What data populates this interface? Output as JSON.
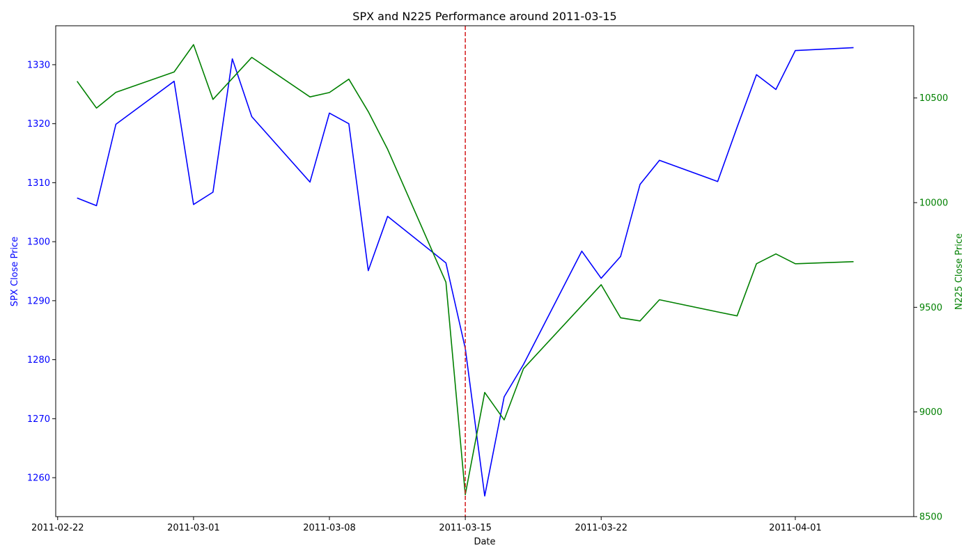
{
  "chart_data": {
    "type": "line",
    "title": "SPX and N225 Performance around 2011-03-15",
    "xlabel": "Date",
    "ylabel_left": "SPX Close Price",
    "ylabel_right": "N225 Close Price",
    "x_ticks": [
      "2011-02-22",
      "2011-03-01",
      "2011-03-08",
      "2011-03-15",
      "2011-03-22",
      "2011-04-01"
    ],
    "ylim_left": [
      1253.4,
      1336.6
    ],
    "ylim_right": [
      8500,
      10845
    ],
    "yticks_left": [
      "1260",
      "1270",
      "1280",
      "1290",
      "1300",
      "1310",
      "1320",
      "1330"
    ],
    "yticks_right": [
      "8500",
      "9000",
      "9500",
      "10000",
      "10500"
    ],
    "event_date": "2011-03-15",
    "event_color": "#d62728",
    "grid": false,
    "series": [
      {
        "axis": "left",
        "color": "#0000ff",
        "points": [
          [
            "2011-02-23",
            1307.4
          ],
          [
            "2011-02-24",
            1306.1
          ],
          [
            "2011-02-25",
            1319.9
          ],
          [
            "2011-02-28",
            1327.2
          ],
          [
            "2011-03-01",
            1306.3
          ],
          [
            "2011-03-02",
            1308.4
          ],
          [
            "2011-03-03",
            1331.0
          ],
          [
            "2011-03-04",
            1321.2
          ],
          [
            "2011-03-07",
            1310.1
          ],
          [
            "2011-03-08",
            1321.8
          ],
          [
            "2011-03-09",
            1320.0
          ],
          [
            "2011-03-10",
            1295.1
          ],
          [
            "2011-03-11",
            1304.3
          ],
          [
            "2011-03-14",
            1296.4
          ],
          [
            "2011-03-15",
            1281.9
          ],
          [
            "2011-03-16",
            1256.9
          ],
          [
            "2011-03-17",
            1273.7
          ],
          [
            "2011-03-18",
            1279.2
          ],
          [
            "2011-03-21",
            1298.4
          ],
          [
            "2011-03-22",
            1293.8
          ],
          [
            "2011-03-23",
            1297.5
          ],
          [
            "2011-03-24",
            1309.7
          ],
          [
            "2011-03-25",
            1313.8
          ],
          [
            "2011-03-28",
            1310.2
          ],
          [
            "2011-03-29",
            1319.4
          ],
          [
            "2011-03-30",
            1328.3
          ],
          [
            "2011-03-31",
            1325.8
          ],
          [
            "2011-04-01",
            1332.4
          ],
          [
            "2011-04-04",
            1332.9
          ]
        ]
      },
      {
        "axis": "right",
        "color": "#008000",
        "points": [
          [
            "2011-02-23",
            10580
          ],
          [
            "2011-02-24",
            10452
          ],
          [
            "2011-02-25",
            10527
          ],
          [
            "2011-02-28",
            10624
          ],
          [
            "2011-03-01",
            10755
          ],
          [
            "2011-03-02",
            10493
          ],
          [
            "2011-03-04",
            10694
          ],
          [
            "2011-03-07",
            10505
          ],
          [
            "2011-03-08",
            10526
          ],
          [
            "2011-03-09",
            10590
          ],
          [
            "2011-03-10",
            10435
          ],
          [
            "2011-03-11",
            10255
          ],
          [
            "2011-03-14",
            9620
          ],
          [
            "2011-03-15",
            8605
          ],
          [
            "2011-03-16",
            9093
          ],
          [
            "2011-03-17",
            8962
          ],
          [
            "2011-03-18",
            9207
          ],
          [
            "2011-03-22",
            9608
          ],
          [
            "2011-03-23",
            9450
          ],
          [
            "2011-03-24",
            9435
          ],
          [
            "2011-03-25",
            9536
          ],
          [
            "2011-03-28",
            9478
          ],
          [
            "2011-03-29",
            9459
          ],
          [
            "2011-03-30",
            9708
          ],
          [
            "2011-03-31",
            9755
          ],
          [
            "2011-04-01",
            9708
          ],
          [
            "2011-04-04",
            9718
          ]
        ]
      }
    ]
  }
}
